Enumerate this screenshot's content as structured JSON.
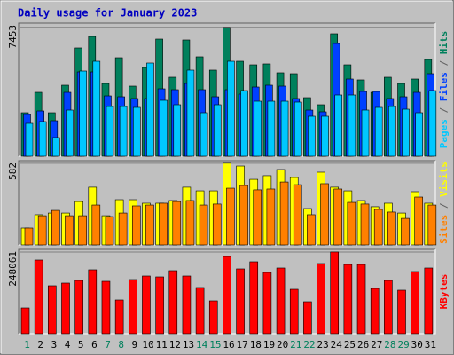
{
  "chart_data": {
    "type": "bar",
    "title": "Daily usage for January 2023",
    "legend_separator": "/",
    "categories": [
      "1",
      "2",
      "3",
      "4",
      "5",
      "6",
      "7",
      "8",
      "9",
      "10",
      "11",
      "12",
      "13",
      "14",
      "15",
      "16",
      "17",
      "18",
      "19",
      "20",
      "21",
      "22",
      "23",
      "24",
      "25",
      "26",
      "27",
      "28",
      "29",
      "30",
      "31"
    ],
    "category_colors": [
      "#00805c",
      "#000000",
      "#000000",
      "#000000",
      "#000000",
      "#000000",
      "#00805c",
      "#00805c",
      "#000000",
      "#000000",
      "#000000",
      "#000000",
      "#000000",
      "#00805c",
      "#00805c",
      "#000000",
      "#000000",
      "#000000",
      "#000000",
      "#000000",
      "#00805c",
      "#00805c",
      "#000000",
      "#000000",
      "#000000",
      "#000000",
      "#000000",
      "#00805c",
      "#00805c",
      "#000000",
      "#000000"
    ],
    "panels": [
      {
        "ylim": [
          0,
          7700
        ],
        "yticks": [
          7453
        ],
        "series": [
          {
            "name": "Hits",
            "color": "#00805c",
            "values": [
              2515,
              3696,
              2515,
              4107,
              6263,
              6930,
              4209,
              5698,
              4055,
              5133,
              6776,
              4569,
              6725,
              5750,
              4980,
              7453,
              5493,
              5287,
              5339,
              4826,
              4774,
              3388,
              2977,
              7084,
              5287,
              4415,
              3696,
              4569,
              4209,
              4466,
              5596
            ]
          },
          {
            "name": "Files",
            "color": "#0040ff",
            "values": [
              2413,
              2618,
              2053,
              3696,
              4876,
              4876,
              3490,
              3439,
              3337,
              3337,
              3901,
              3850,
              4209,
              3850,
              3439,
              3850,
              3593,
              4004,
              4107,
              4055,
              3337,
              2669,
              2567,
              6519,
              4466,
              3747,
              3747,
              3337,
              3439,
              3696,
              4774
            ]
          },
          {
            "name": "Pages",
            "color": "#00c8ff",
            "values": [
              1899,
              2002,
              1078,
              2669,
              4928,
              5492,
              2874,
              2874,
              2823,
              5390,
              3234,
              2977,
              4979,
              2515,
              2977,
              5492,
              3798,
              3182,
              3182,
              3182,
              3131,
              2310,
              2310,
              3542,
              3542,
              2669,
              2823,
              2874,
              2720,
              2515,
              3798
            ]
          }
        ]
      },
      {
        "ylim": [
          0,
          600
        ],
        "yticks": [
          582
        ],
        "series": [
          {
            "name": "Visits",
            "color": "#ffff00",
            "values": [
              120,
              215,
              227,
              227,
              309,
              411,
              208,
              322,
              322,
              297,
              297,
              316,
              411,
              385,
              385,
              582,
              562,
              467,
              493,
              537,
              480,
              259,
              518,
              411,
              385,
              316,
              272,
              297,
              227,
              379,
              297
            ]
          },
          {
            "name": "Sites",
            "color": "#ff8000",
            "values": [
              120,
              208,
              246,
              208,
              208,
              284,
              202,
              227,
              278,
              284,
              297,
              309,
              316,
              284,
              291,
              404,
              423,
              392,
              398,
              448,
              429,
              215,
              436,
              398,
              303,
              291,
              253,
              234,
              189,
              341,
              284
            ]
          }
        ]
      },
      {
        "ylim": [
          0,
          256000
        ],
        "yticks": [
          248061
        ],
        "series": [
          {
            "name": "KBytes",
            "color": "#ff0000",
            "values": [
              78155,
              223685,
              145530,
              153615,
              161700,
              194040,
              159005,
              102410,
              164395,
              175175,
              172480,
              191345,
              175175,
              140140,
              99715,
              234465,
              196735,
              218295,
              185955,
              199430,
              134750,
              97020,
              212905,
              248061,
              210210,
              210210,
              137445,
              161700,
              132055,
              188650,
              199430
            ]
          }
        ]
      }
    ]
  }
}
